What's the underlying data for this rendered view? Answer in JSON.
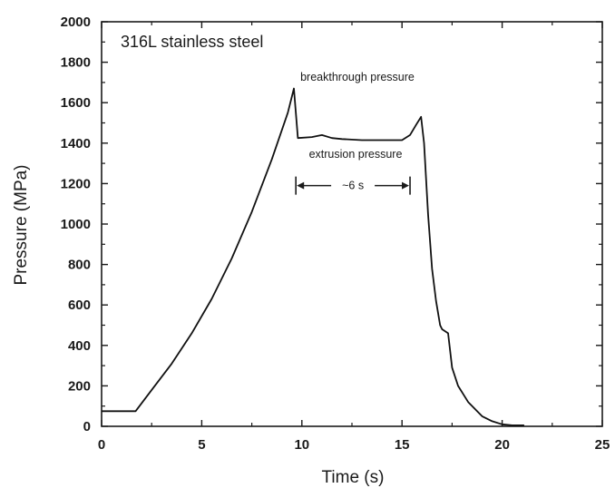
{
  "chart_data": {
    "type": "line",
    "xlabel": "Time (s)",
    "ylabel": "Pressure (MPa)",
    "xlim": [
      0,
      25
    ],
    "ylim": [
      0,
      2000
    ],
    "x_ticks": [
      "0",
      "5",
      "10",
      "15",
      "20",
      "25"
    ],
    "y_ticks": [
      "0",
      "200",
      "400",
      "600",
      "800",
      "1000",
      "1200",
      "1400",
      "1600",
      "1800",
      "2000"
    ],
    "grid": false,
    "series": [
      {
        "x": [
          0,
          1.7,
          2.5,
          3.5,
          4.5,
          5.5,
          6.5,
          7.5,
          8.5,
          9.3,
          9.6,
          9.8,
          10.5,
          11.0,
          11.5,
          12.0,
          13.0,
          14.0,
          15.0,
          15.4,
          15.7,
          15.95,
          16.1,
          16.3,
          16.5,
          16.7,
          16.9,
          17.0,
          17.3,
          17.5,
          17.8,
          18.3,
          19.0,
          19.5,
          20.0,
          20.5,
          21.1
        ],
        "y": [
          75,
          75,
          180,
          310,
          460,
          630,
          830,
          1060,
          1320,
          1550,
          1670,
          1425,
          1430,
          1440,
          1425,
          1420,
          1415,
          1415,
          1415,
          1440,
          1490,
          1530,
          1400,
          1050,
          780,
          620,
          500,
          480,
          460,
          290,
          200,
          120,
          50,
          25,
          10,
          5,
          5
        ]
      }
    ],
    "annotations": {
      "title_label": "316L stainless steel",
      "peak_label": "breakthrough pressure",
      "plateau_label": "extrusion pressure",
      "duration_label": "~6 s",
      "duration_range": [
        9.7,
        15.4
      ],
      "duration_level": 1190
    }
  }
}
